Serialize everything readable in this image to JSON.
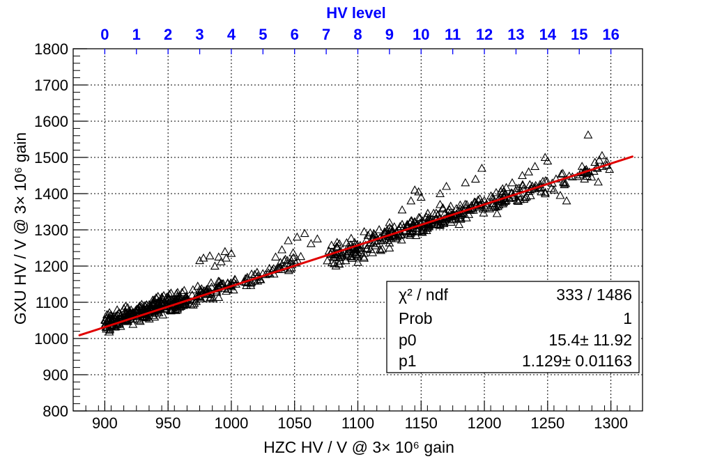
{
  "chart_data": {
    "type": "scatter",
    "title": "",
    "xlabel": "HZC HV / V @ 3× 10⁶ gain",
    "ylabel": "GXU HV / V @ 3× 10⁶ gain",
    "top_axis_label": "HV level",
    "xlim": [
      875,
      1325
    ],
    "ylim": [
      800,
      1800
    ],
    "x_ticks": [
      "900",
      "950",
      "1000",
      "1050",
      "1100",
      "1150",
      "1200",
      "1250",
      "1300"
    ],
    "y_ticks": [
      "800",
      "900",
      "1000",
      "1100",
      "1200",
      "1300",
      "1400",
      "1500",
      "1600",
      "1700",
      "1800"
    ],
    "top_ticks": [
      "0",
      "1",
      "2",
      "3",
      "4",
      "5",
      "6",
      "7",
      "8",
      "9",
      "10",
      "11",
      "12",
      "13",
      "14",
      "15",
      "16"
    ],
    "top_axis_x0": 900,
    "top_axis_step": 25,
    "grid": true,
    "marker": "open-triangle",
    "fit": {
      "x_range": [
        880,
        1317
      ],
      "p0": 15.4,
      "p1": 1.129,
      "color": "#e00000"
    },
    "clusters": [
      {
        "x": [
          900,
          930
        ],
        "dy": [
          -20,
          40
        ],
        "n": 130
      },
      {
        "x": [
          930,
          965
        ],
        "dy": [
          -25,
          40
        ],
        "n": 170
      },
      {
        "x": [
          965,
          1000
        ],
        "dy": [
          -25,
          35
        ],
        "n": 60
      },
      {
        "x": [
          1000,
          1040
        ],
        "dy": [
          -20,
          25
        ],
        "n": 40
      },
      {
        "x": [
          1040,
          1055
        ],
        "dy": [
          -20,
          40
        ],
        "n": 16
      },
      {
        "x": [
          1075,
          1120
        ],
        "dy": [
          -45,
          30
        ],
        "n": 95
      },
      {
        "x": [
          1120,
          1155
        ],
        "dy": [
          -30,
          30
        ],
        "n": 90
      },
      {
        "x": [
          1155,
          1200
        ],
        "dy": [
          -30,
          30
        ],
        "n": 100
      },
      {
        "x": [
          1200,
          1240
        ],
        "dy": [
          -35,
          30
        ],
        "n": 65
      },
      {
        "x": [
          1240,
          1300
        ],
        "dy": [
          -30,
          30
        ],
        "n": 45
      }
    ],
    "outliers": [
      {
        "x": 975,
        "y": 1215
      },
      {
        "x": 978,
        "y": 1222
      },
      {
        "x": 983,
        "y": 1228
      },
      {
        "x": 990,
        "y": 1225
      },
      {
        "x": 995,
        "y": 1240
      },
      {
        "x": 1000,
        "y": 1235
      },
      {
        "x": 996,
        "y": 1222
      },
      {
        "x": 987,
        "y": 1200
      },
      {
        "x": 992,
        "y": 1212
      },
      {
        "x": 1045,
        "y": 1270
      },
      {
        "x": 1052,
        "y": 1280
      },
      {
        "x": 1058,
        "y": 1290
      },
      {
        "x": 1063,
        "y": 1262
      },
      {
        "x": 1068,
        "y": 1275
      },
      {
        "x": 1040,
        "y": 1245
      },
      {
        "x": 1035,
        "y": 1225
      },
      {
        "x": 1105,
        "y": 1295
      },
      {
        "x": 1125,
        "y": 1320
      },
      {
        "x": 1135,
        "y": 1355
      },
      {
        "x": 1142,
        "y": 1380
      },
      {
        "x": 1150,
        "y": 1390
      },
      {
        "x": 1145,
        "y": 1410
      },
      {
        "x": 1148,
        "y": 1405
      },
      {
        "x": 1165,
        "y": 1400
      },
      {
        "x": 1170,
        "y": 1420
      },
      {
        "x": 1185,
        "y": 1430
      },
      {
        "x": 1193,
        "y": 1440
      },
      {
        "x": 1198,
        "y": 1470
      },
      {
        "x": 1215,
        "y": 1405
      },
      {
        "x": 1222,
        "y": 1430
      },
      {
        "x": 1230,
        "y": 1450
      },
      {
        "x": 1235,
        "y": 1460
      },
      {
        "x": 1240,
        "y": 1475
      },
      {
        "x": 1248,
        "y": 1500
      },
      {
        "x": 1250,
        "y": 1490
      },
      {
        "x": 1255,
        "y": 1410
      },
      {
        "x": 1260,
        "y": 1395
      },
      {
        "x": 1263,
        "y": 1430
      },
      {
        "x": 1265,
        "y": 1380
      },
      {
        "x": 1282,
        "y": 1562
      },
      {
        "x": 1293,
        "y": 1505
      },
      {
        "x": 1290,
        "y": 1432
      },
      {
        "x": 1165,
        "y": 1370
      },
      {
        "x": 1155,
        "y": 1305
      },
      {
        "x": 1100,
        "y": 1210
      },
      {
        "x": 1210,
        "y": 1345
      },
      {
        "x": 1180,
        "y": 1315
      },
      {
        "x": 1125,
        "y": 1250
      }
    ],
    "stats": {
      "chi2_label": "χ² / ndf",
      "chi2_value": "333 / 1486",
      "prob_label": "Prob",
      "prob_value": "1",
      "p0_label": "p0",
      "p0_value": "15.4± 11.92",
      "p1_label": "p1",
      "p1_value": "1.129± 0.01163"
    }
  }
}
